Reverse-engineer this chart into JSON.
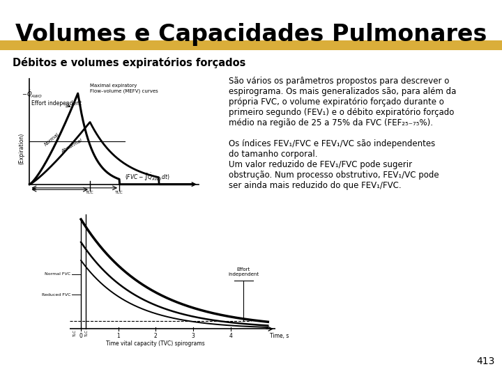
{
  "title": "Volumes e Capacidades Pulmonares",
  "subtitle": "Débitos e volumes expiratórios forçados",
  "highlight_color": "#D4A017",
  "bg_color": "#FFFFFF",
  "title_color": "#000000",
  "subtitle_color": "#000000",
  "page_number": "413",
  "para1_line1": "São vários os parâmetros propostos para descrever o",
  "para1_line2": "espirograma. Os mais generalizados são, para além da",
  "para1_line3": "própria FVC, o volume expiratório forçado durante o",
  "para1_line4": "primeiro segundo (FEV",
  "para1_line4b": "1",
  "para1_line4c": ") e o débito expiratório forçado",
  "para1_line5a": "médio na região de 25 a 75% da FVC (FEF",
  "para1_line5b": "25-75%",
  "para1_line5c": ").",
  "para2_line1": "Os índices FEV",
  "para2_line1b": "1",
  "para2_line1c": "/FVC e FEV",
  "para2_line1d": "1",
  "para2_line1e": "/VC são independentes",
  "para2_line2": "do tamanho corporal.",
  "para2_line3": "Um valor reduzido de FEV",
  "para2_line3b": "1",
  "para2_line3c": "/FVC pode sugerir",
  "para2_line4": "obstrução. Num processo obstrutivo, FEV",
  "para2_line4b": "1",
  "para2_line4c": "/VC pode",
  "para2_line5": "ser ainda mais reduzido do que FEV",
  "para2_line5b": "1",
  "para2_line5c": "/FVC."
}
